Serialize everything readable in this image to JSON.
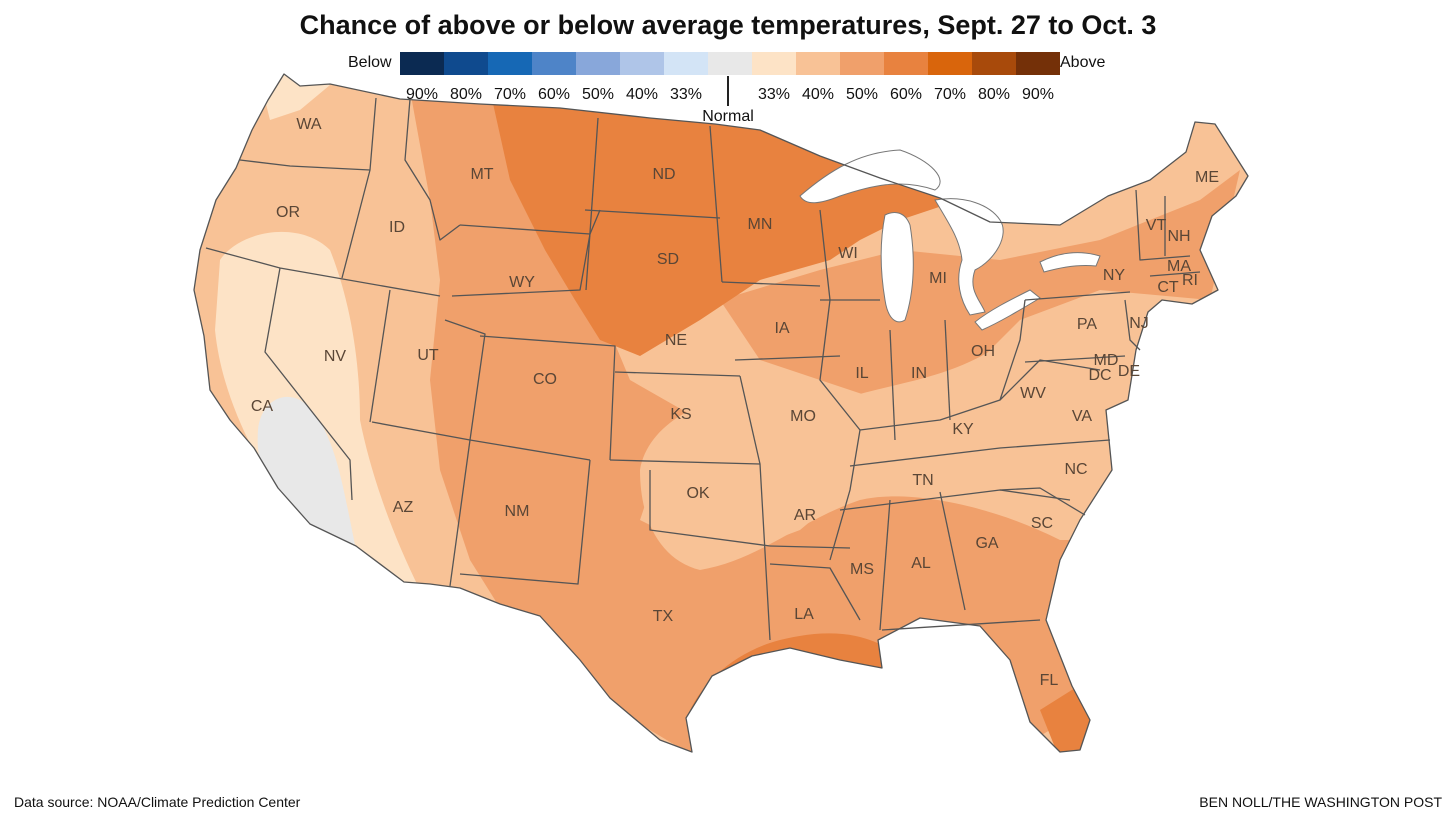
{
  "title": "Chance of above or below average temperatures, Sept. 27 to Oct. 3",
  "legend": {
    "below_label": "Below",
    "above_label": "Above",
    "normal_label": "Normal",
    "colors": [
      "#0b2a52",
      "#0f4a8e",
      "#1668b5",
      "#4e84c8",
      "#88a7da",
      "#afc5e8",
      "#d3e4f6",
      "#e8e8e8",
      "#fde3c6",
      "#f8c296",
      "#f0a06b",
      "#e8823f",
      "#d9650c",
      "#a84a0b",
      "#743008"
    ],
    "percent_labels": [
      "90%",
      "80%",
      "70%",
      "60%",
      "50%",
      "40%",
      "33%",
      "33%",
      "40%",
      "50%",
      "60%",
      "70%",
      "80%",
      "90%"
    ]
  },
  "regions": {
    "n40_color": "#f8c296",
    "n50_color": "#f0a06b",
    "n60_color": "#e8823f",
    "n33_color": "#fde3c6",
    "normal_color": "#e8e8e8",
    "lake_color": "#ffffff"
  },
  "states": [
    "WA",
    "OR",
    "CA",
    "ID",
    "NV",
    "MT",
    "WY",
    "UT",
    "AZ",
    "CO",
    "NM",
    "ND",
    "SD",
    "NE",
    "KS",
    "OK",
    "TX",
    "MN",
    "IA",
    "MO",
    "AR",
    "LA",
    "WI",
    "IL",
    "MI",
    "IN",
    "OH",
    "KY",
    "TN",
    "MS",
    "AL",
    "GA",
    "FL",
    "SC",
    "NC",
    "VA",
    "WV",
    "PA",
    "NY",
    "VT",
    "NH",
    "ME",
    "MA",
    "CT",
    "RI",
    "NJ",
    "MD",
    "DE",
    "DC"
  ],
  "footer": {
    "source": "Data source: NOAA/Climate Prediction Center",
    "credit": "BEN NOLL/THE WASHINGTON POST"
  }
}
